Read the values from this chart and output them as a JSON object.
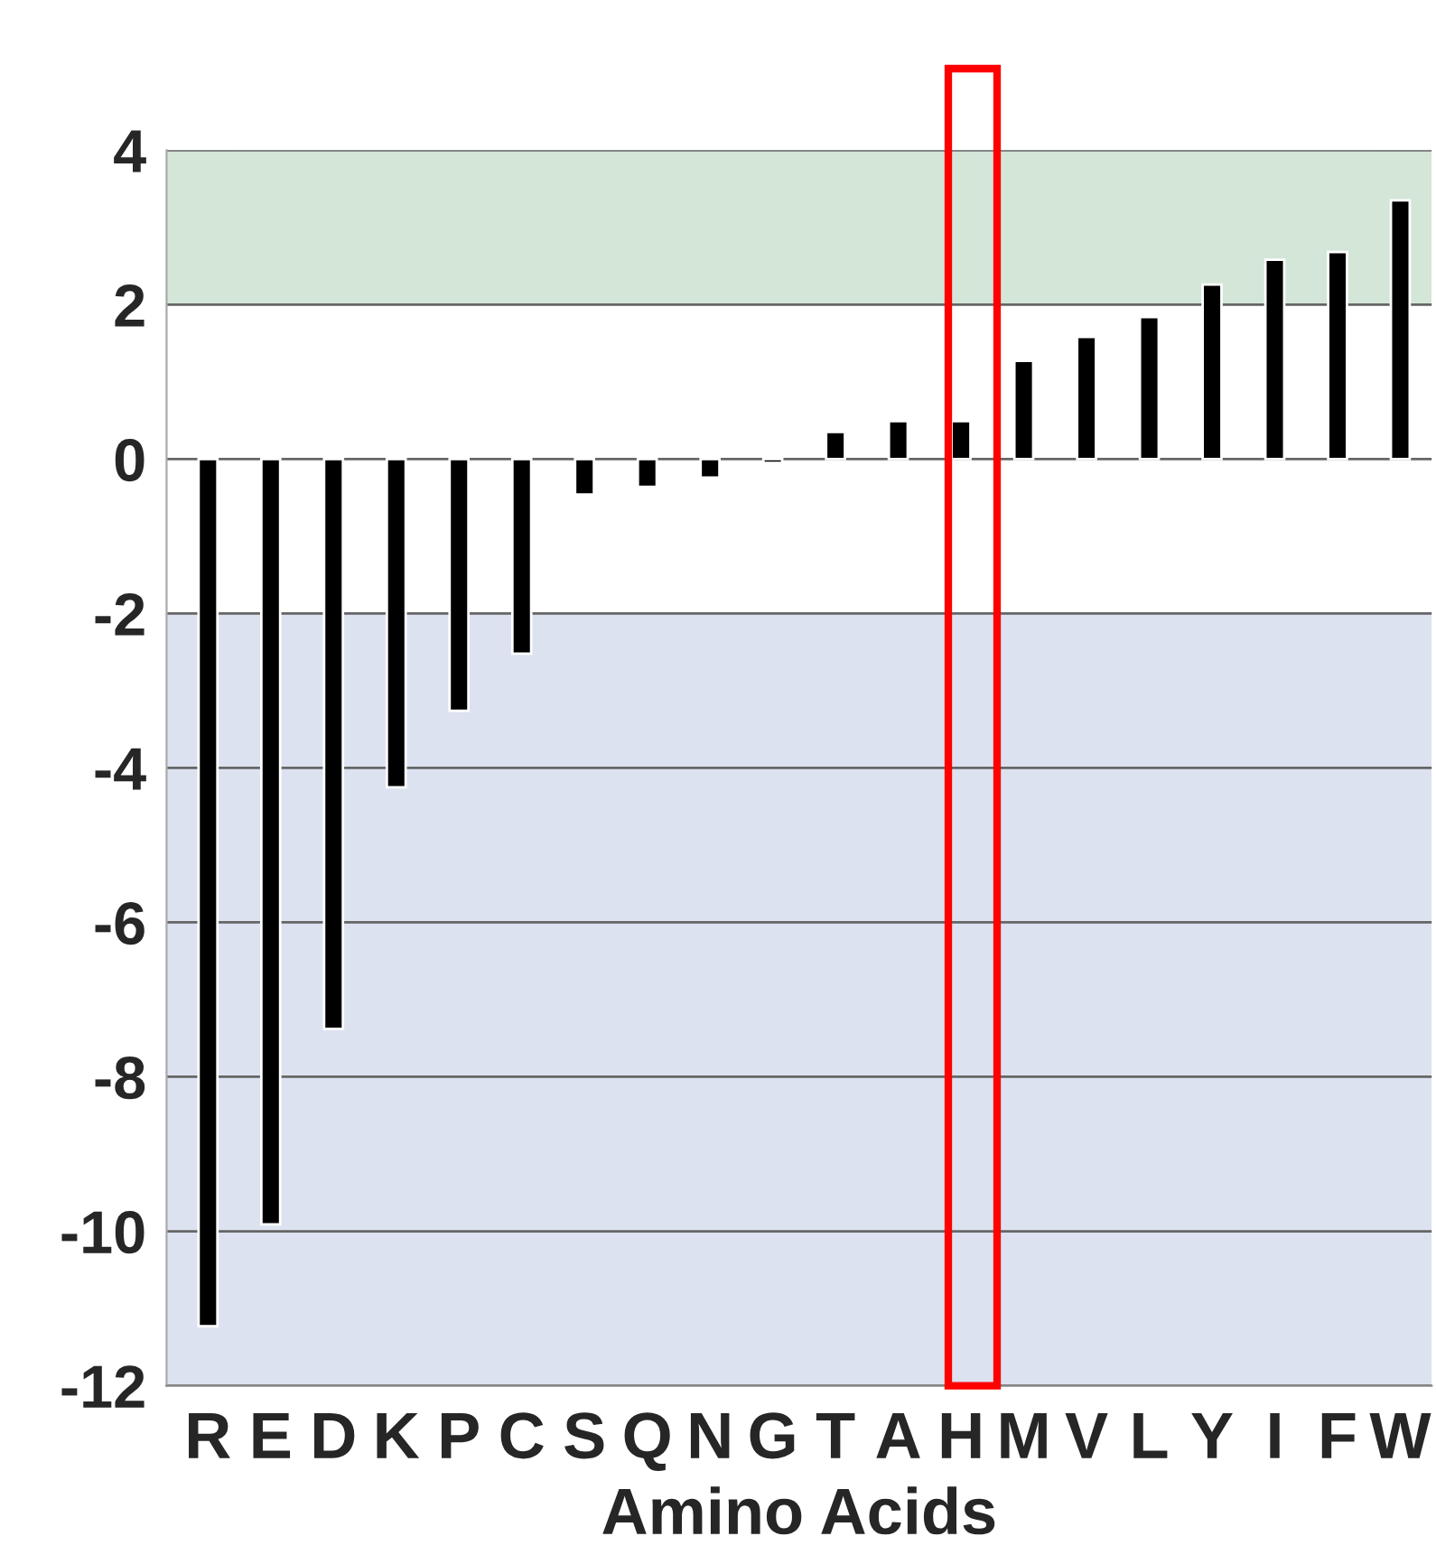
{
  "chart_data": {
    "type": "bar",
    "xlabel": "Amino Acids",
    "categories": [
      "R",
      "E",
      "D",
      "K",
      "P",
      "C",
      "S",
      "Q",
      "N",
      "G",
      "T",
      "A",
      "H",
      "M",
      "V",
      "L",
      "Y",
      "I",
      "F",
      "W"
    ],
    "values": [
      -11.23,
      -9.91,
      -7.38,
      -4.25,
      -3.26,
      -2.52,
      -0.46,
      -0.36,
      -0.24,
      -0.05,
      0.35,
      0.49,
      0.49,
      1.27,
      1.58,
      1.84,
      2.26,
      2.58,
      2.68,
      3.35
    ],
    "color": "#000000",
    "ylim": [
      -12,
      4
    ],
    "yticks": [
      -12,
      -10,
      -8,
      -6,
      -4,
      -2,
      0,
      2,
      4
    ],
    "grid": "y",
    "bands": [
      {
        "axis": "y",
        "from": 2,
        "to": 4,
        "color": "#d3e6d8"
      },
      {
        "axis": "y",
        "from": -12,
        "to": -2,
        "color": "#dce2f0"
      }
    ]
  }
}
